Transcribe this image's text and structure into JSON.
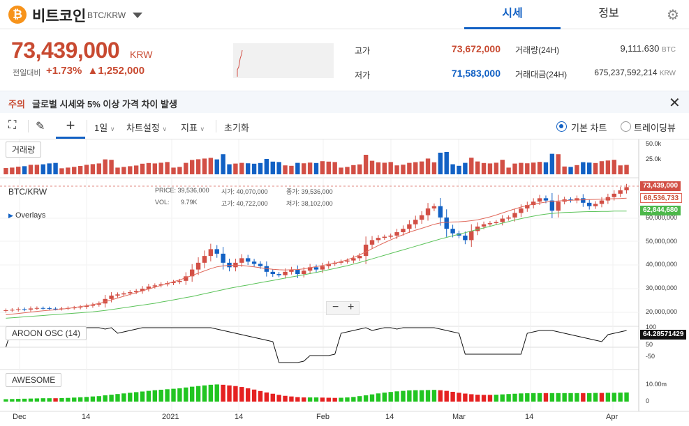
{
  "header": {
    "coin_icon": "bitcoin-icon",
    "coin_name": "비트코인",
    "pair": "BTC/KRW",
    "tabs": [
      {
        "label": "시세"
      },
      {
        "label": "정보"
      }
    ],
    "settings_icon": "gear-icon"
  },
  "ticker": {
    "price": "73,439,000",
    "unit": "KRW",
    "change_label": "전일대비",
    "change_pct": "+1.73%",
    "change_amt": "▲1,252,000"
  },
  "stats": {
    "high_label": "고가",
    "high": "73,672,000",
    "low_label": "저가",
    "low": "71,583,000",
    "vol_label": "거래량(24H)",
    "vol": "9,111.630",
    "vol_unit": "BTC",
    "amt_label": "거래대금(24H)",
    "amt": "675,237,592,214",
    "amt_unit": "KRW"
  },
  "notice": {
    "tag": "주의",
    "text": "글로벌 시세와 5% 이상 가격 차이 발생"
  },
  "toolbar": {
    "interval": "1일",
    "chart_settings": "차트설정",
    "indicators": "지표",
    "reset": "초기화",
    "basic_chart": "기본 차트",
    "tradingview": "트레이딩뷰"
  },
  "panes": {
    "volume_label": "거래량",
    "main_label": "BTC/KRW",
    "overlays": "Overlays",
    "aroon_label": "AROON OSC (14)",
    "awesome_label": "AWESOME"
  },
  "ohlc": {
    "price_l": "PRICE:",
    "price": "39,536,000",
    "open_l": "시가:",
    "open": "40,070,000",
    "close_l": "종가:",
    "close": "39,536,000",
    "vol_l": "VOL:",
    "vol": "9.79K",
    "high_l": "고가:",
    "high": "40,722,000",
    "low_l": "저가:",
    "low": "38,102,000"
  },
  "axes": {
    "volume_ticks": [
      "50.0k",
      "25.0k"
    ],
    "price_ticks": [
      "60,000,000",
      "50,000,000",
      "40,000,000",
      "30,000,000",
      "20,000,000"
    ],
    "price_tag": "73,439,000",
    "ma1_tag": "68,536,733",
    "ma2_tag": "62,844,680",
    "aroon_ticks": [
      "100",
      "50",
      "-50"
    ],
    "aroon_tag": "64.28571429",
    "awesome_ticks": [
      "10.00m",
      "0"
    ],
    "x_ticks": [
      "Dec",
      "14",
      "2021",
      "14",
      "Feb",
      "14",
      "Mar",
      "14",
      "Apr"
    ]
  },
  "chart_data": {
    "type": "candlestick",
    "series": [
      {
        "name": "BTC/KRW",
        "values": [
          19.0,
          19.2,
          19.5,
          19.3,
          19.8,
          20.0,
          19.9,
          19.7,
          19.6,
          19.8,
          20.0,
          20.2,
          20.5,
          21.0,
          21.5,
          22.0,
          24.0,
          25.5,
          26.0,
          26.5,
          27.0,
          27.5,
          28.5,
          29.5,
          30.0,
          30.5,
          31.0,
          31.5,
          32.0,
          34.0,
          37.0,
          40.0,
          43.0,
          46.0,
          44.0,
          40.0,
          38.0,
          40.0,
          42.0,
          40.5,
          39.5,
          38.5,
          36.0,
          35.0,
          34.5,
          36.0,
          37.0,
          35.0,
          36.5,
          38.0,
          37.0,
          38.5,
          39.5,
          40.0,
          40.5,
          41.0,
          42.0,
          43.0,
          48.0,
          50.0,
          51.0,
          51.5,
          52.0,
          53.5,
          55.0,
          57.0,
          59.0,
          61.0,
          64.0,
          65.0,
          60.0,
          55.0,
          53.0,
          52.0,
          50.0,
          54.0,
          56.0,
          57.0,
          57.5,
          58.0,
          59.5,
          60.0,
          62.0,
          64.0,
          65.5,
          67.0,
          68.5,
          67.5,
          63.0,
          67.0,
          68.0,
          67.5,
          68.5,
          66.5,
          65.0,
          66.0,
          67.5,
          69.0,
          70.5,
          72.0,
          73.4
        ]
      },
      {
        "name": "MA20",
        "values": [
          17.0,
          17.3,
          17.6,
          17.9,
          18.2,
          18.5,
          18.8,
          19.0,
          19.2,
          19.5,
          19.8,
          20.2,
          20.6,
          21.0,
          21.5,
          22.0,
          22.8,
          23.6,
          24.4,
          25.2,
          26.0,
          26.8,
          27.6,
          28.4,
          29.2,
          30.0,
          30.8,
          31.6,
          32.4,
          33.4,
          34.4,
          35.4,
          36.4,
          37.4,
          38.2,
          38.6,
          38.8,
          38.9,
          38.8,
          38.5,
          38.2,
          37.8,
          37.4,
          37.1,
          36.9,
          36.8,
          36.9,
          37.0,
          37.3,
          37.8,
          38.3,
          38.8,
          39.3,
          39.8,
          40.5,
          41.3,
          42.3,
          43.5,
          44.8,
          46.2,
          47.6,
          48.9,
          50.1,
          51.3,
          52.4,
          53.5,
          54.4,
          55.2,
          56.1,
          57.0,
          57.6,
          57.9,
          58.0,
          58.1,
          58.3,
          58.6,
          59.0,
          59.6,
          60.3,
          61.1,
          62.0,
          62.9,
          63.8,
          64.6,
          65.3,
          65.9,
          66.4,
          66.8,
          67.1,
          67.3,
          67.5,
          67.6,
          67.7,
          67.8,
          67.9,
          68.0,
          68.1,
          68.2,
          68.3,
          68.4,
          68.5
        ]
      },
      {
        "name": "MA60",
        "values": [
          15.5,
          15.7,
          15.9,
          16.1,
          16.3,
          16.5,
          16.7,
          16.9,
          17.1,
          17.3,
          17.5,
          17.7,
          17.9,
          18.1,
          18.3,
          18.6,
          18.9,
          19.3,
          19.7,
          20.1,
          20.5,
          20.9,
          21.3,
          21.7,
          22.1,
          22.6,
          23.1,
          23.6,
          24.1,
          24.6,
          25.1,
          25.7,
          26.3,
          26.9,
          27.5,
          28.1,
          28.7,
          29.2,
          29.7,
          30.2,
          30.7,
          31.2,
          31.7,
          32.2,
          32.7,
          33.2,
          33.7,
          34.2,
          34.7,
          35.2,
          35.7,
          36.3,
          36.9,
          37.5,
          38.1,
          38.7,
          39.4,
          40.1,
          40.9,
          41.7,
          42.5,
          43.3,
          44.1,
          44.9,
          45.7,
          46.5,
          47.3,
          48.1,
          48.9,
          49.7,
          50.5,
          51.2,
          51.9,
          52.6,
          53.3,
          54.0,
          54.7,
          55.4,
          56.1,
          56.8,
          57.5,
          58.2,
          58.9,
          59.5,
          60.1,
          60.6,
          61.1,
          61.5,
          61.8,
          62.0,
          62.2,
          62.3,
          62.4,
          62.5,
          62.6,
          62.6,
          62.7,
          62.7,
          62.8,
          62.8,
          62.8
        ]
      }
    ],
    "ylabel": "",
    "ylim": [
      15,
      76
    ]
  },
  "colors": {
    "up": "#d24f45",
    "down": "#1261c4",
    "ma20": "#e0685a",
    "ma60": "#5cc35a",
    "aw_up": "#21c521",
    "aw_down": "#e52121"
  }
}
